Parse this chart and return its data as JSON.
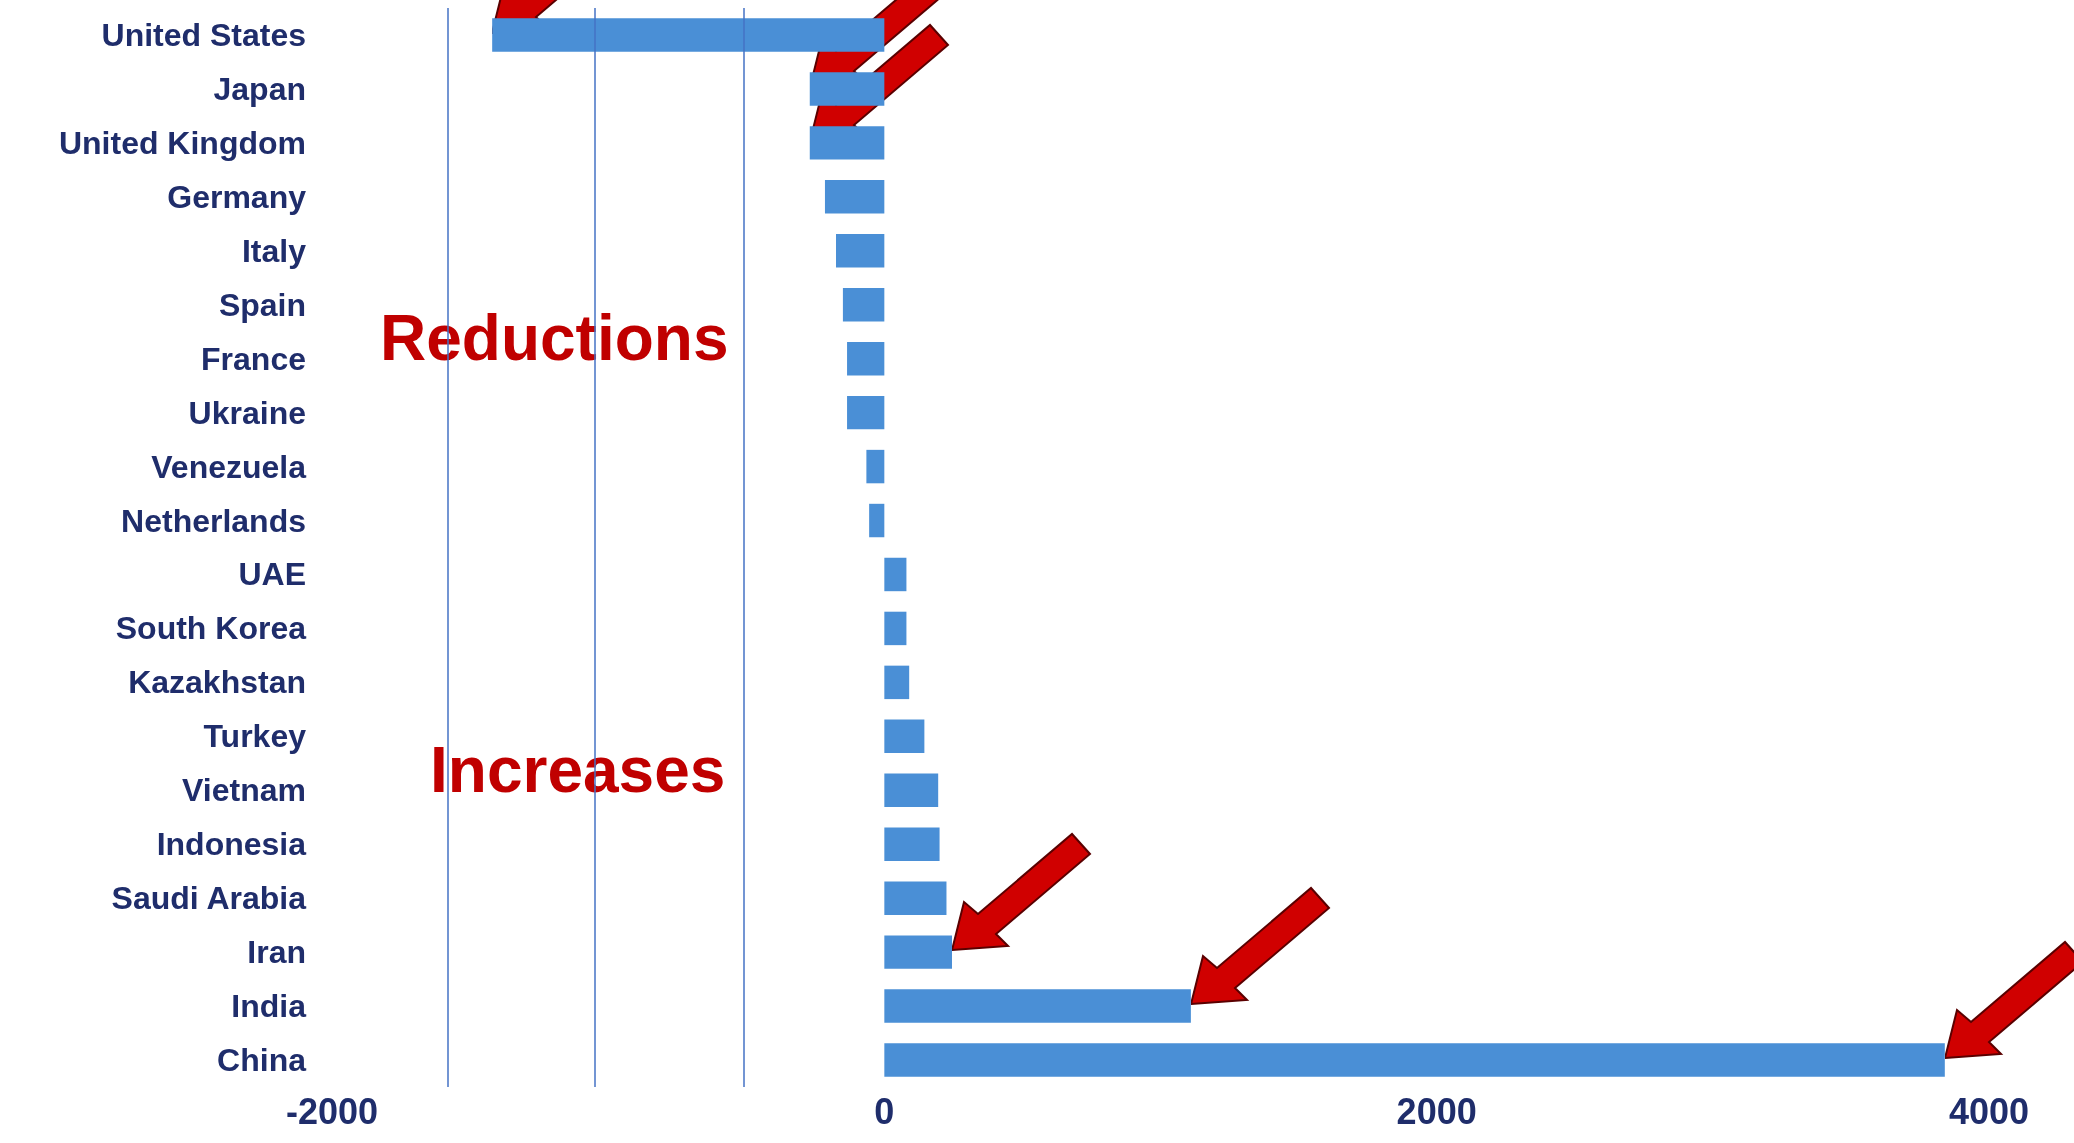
{
  "chart_data": {
    "type": "bar",
    "orientation": "horizontal",
    "categories": [
      "United States",
      "Japan",
      "United Kingdom",
      "Germany",
      "Italy",
      "Spain",
      "France",
      "Ukraine",
      "Venezuela",
      "Netherlands",
      "UAE",
      "South Korea",
      "Kazakhstan",
      "Turkey",
      "Vietnam",
      "Indonesia",
      "Saudi Arabia",
      "Iran",
      "India",
      "China"
    ],
    "values": [
      -1420,
      -270,
      -270,
      -215,
      -175,
      -150,
      -135,
      -135,
      -65,
      -55,
      80,
      80,
      90,
      145,
      195,
      200,
      225,
      245,
      1110,
      3840
    ],
    "color": "#4a8fd6",
    "xlim": [
      -2000,
      4000
    ],
    "xticks": [
      -2000,
      0,
      2000,
      4000
    ],
    "grid": false,
    "annotations": [
      "Reductions",
      "Increases"
    ],
    "ref_lines": [
      {
        "axis": "x",
        "value": -1580,
        "color": "#4472c4"
      },
      {
        "axis": "x",
        "value": -1050,
        "color": "#4472c4"
      },
      {
        "axis": "x",
        "value": -510,
        "color": "#4472c4"
      }
    ]
  }
}
